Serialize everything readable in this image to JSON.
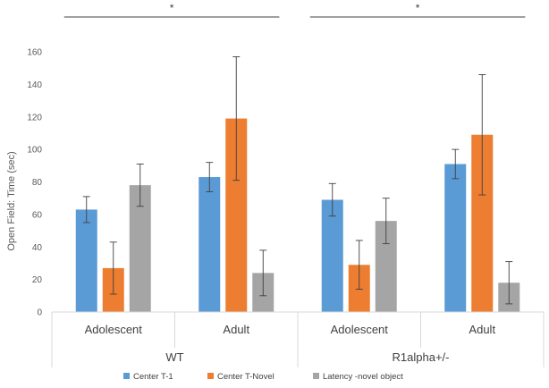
{
  "chart_data": {
    "type": "bar",
    "ylabel": "Open Field: Time (sec)",
    "ylim": [
      0,
      160
    ],
    "yticks": [
      0,
      20,
      40,
      60,
      80,
      100,
      120,
      140,
      160
    ],
    "groups": [
      {
        "label": "WT",
        "categories": [
          "Adolescent",
          "Adult"
        ]
      },
      {
        "label": "R1alpha+/-",
        "categories": [
          "Adolescent",
          "Adult"
        ]
      }
    ],
    "categories": [
      "Adolescent",
      "Adult",
      "Adolescent",
      "Adult"
    ],
    "series": [
      {
        "name": "Center T-1",
        "color": "#5b9bd5",
        "values": [
          63,
          83,
          69,
          91
        ],
        "errors": [
          8,
          9,
          10,
          9
        ]
      },
      {
        "name": "Center T-Novel",
        "color": "#ed7d31",
        "values": [
          27,
          119,
          29,
          109
        ],
        "errors": [
          16,
          38,
          15,
          37
        ]
      },
      {
        "name": "Latency -novel object",
        "color": "#a5a5a5",
        "values": [
          78,
          24,
          56,
          18
        ],
        "errors": [
          13,
          14,
          14,
          13
        ]
      }
    ],
    "significance": [
      {
        "group": "WT",
        "label": "*"
      },
      {
        "group": "R1alpha+/-",
        "label": "*"
      }
    ],
    "grid": false,
    "legend_position": "bottom"
  }
}
